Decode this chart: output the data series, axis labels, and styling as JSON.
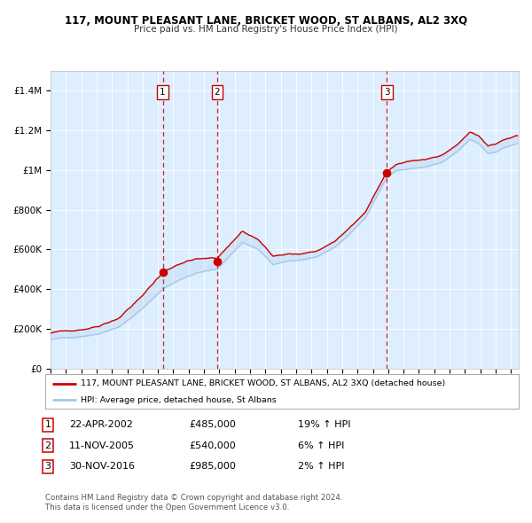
{
  "title_line1": "117, MOUNT PLEASANT LANE, BRICKET WOOD, ST ALBANS, AL2 3XQ",
  "title_line2": "Price paid vs. HM Land Registry's House Price Index (HPI)",
  "legend_line1": "117, MOUNT PLEASANT LANE, BRICKET WOOD, ST ALBANS, AL2 3XQ (detached house)",
  "legend_line2": "HPI: Average price, detached house, St Albans",
  "sale1_label": "1",
  "sale1_date": "22-APR-2002",
  "sale1_price": "£485,000",
  "sale1_hpi": "19% ↑ HPI",
  "sale1_year": 2002.31,
  "sale1_value": 485000,
  "sale2_label": "2",
  "sale2_date": "11-NOV-2005",
  "sale2_price": "£540,000",
  "sale2_hpi": "6% ↑ HPI",
  "sale2_year": 2005.86,
  "sale2_value": 540000,
  "sale3_label": "3",
  "sale3_date": "30-NOV-2016",
  "sale3_price": "£985,000",
  "sale3_hpi": "2% ↑ HPI",
  "sale3_year": 2016.92,
  "sale3_value": 985000,
  "footer_line1": "Contains HM Land Registry data © Crown copyright and database right 2024.",
  "footer_line2": "This data is licensed under the Open Government Licence v3.0.",
  "hpi_color": "#a8c8e8",
  "price_color": "#cc0000",
  "marker_color": "#cc0000",
  "dashed_line_color": "#cc0000",
  "plot_bg_color": "#ddeeff",
  "ylim_min": 0,
  "ylim_max": 1500000,
  "xmin": 1995.0,
  "xmax": 2025.5
}
